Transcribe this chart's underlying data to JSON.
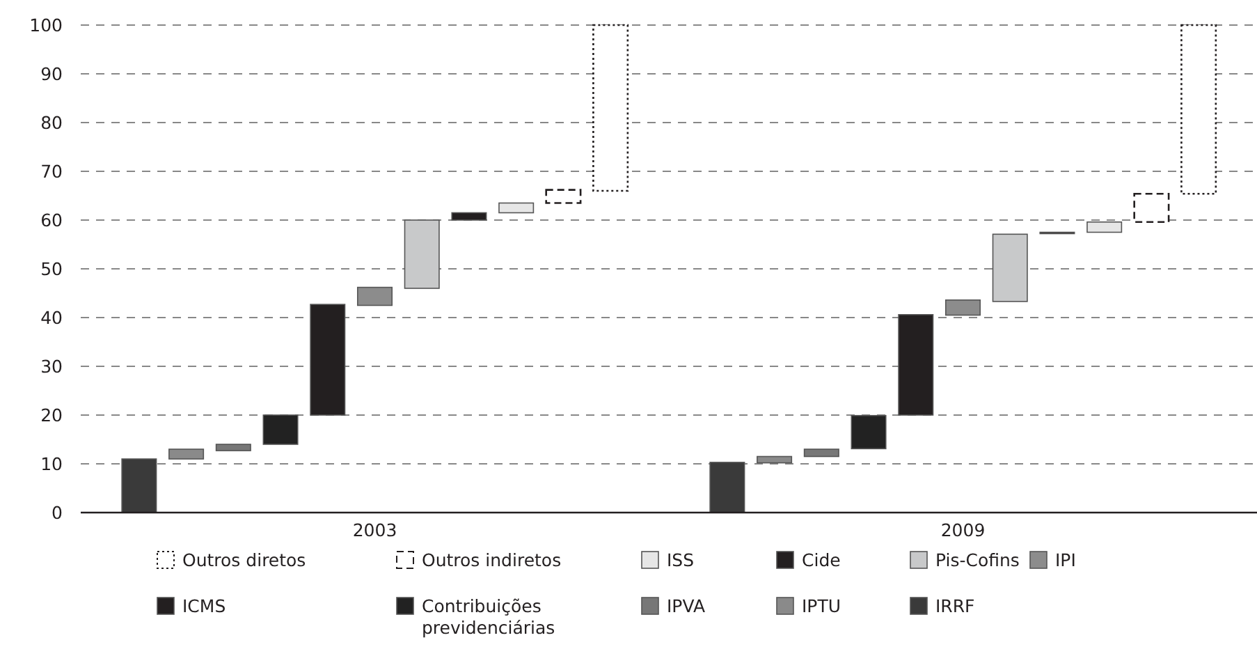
{
  "chart_data": {
    "type": "bar",
    "categories": [
      "2003",
      "2009"
    ],
    "ylim": [
      0,
      100
    ],
    "yticks": [
      0,
      10,
      20,
      30,
      40,
      50,
      60,
      70,
      80,
      90,
      100
    ],
    "grid": "y",
    "legend": "bottom",
    "series": [
      {
        "name": "IRRF",
        "color": "#3a3a3a",
        "base": [
          0,
          0
        ],
        "values": [
          11,
          10.3
        ]
      },
      {
        "name": "IPTU",
        "color": "#8a8a8a",
        "base": [
          11,
          10.2
        ],
        "values": [
          2,
          1.3
        ]
      },
      {
        "name": "IPVA",
        "color": "#777777",
        "base": [
          12.7,
          11.5
        ],
        "values": [
          1.3,
          1.5
        ]
      },
      {
        "name": "Contribuições previdenciárias",
        "color": "#222222",
        "base": [
          14,
          13.1
        ],
        "values": [
          6,
          6.8
        ]
      },
      {
        "name": "ICMS",
        "color": "#231f20",
        "base": [
          20,
          20
        ],
        "values": [
          22.7,
          20.6
        ]
      },
      {
        "name": "IPI",
        "color": "#8c8c8c",
        "base": [
          42.5,
          40.5
        ],
        "values": [
          3.7,
          3.1
        ]
      },
      {
        "name": "Pis-Cofins",
        "color": "#c8c9ca",
        "base": [
          46,
          43.3
        ],
        "values": [
          14,
          13.8
        ]
      },
      {
        "name": "Cide",
        "color": "#231f20",
        "base": [
          60,
          57.3
        ],
        "values": [
          1.5,
          0.2
        ]
      },
      {
        "name": "ISS",
        "color": "#e6e6e6",
        "base": [
          61.5,
          57.5
        ],
        "values": [
          2,
          2.1
        ]
      },
      {
        "name": "Outros indiretos",
        "color": "#ffffff",
        "line_style": "dashed",
        "base": [
          63.5,
          59.6
        ],
        "values": [
          2.7,
          5.8
        ]
      },
      {
        "name": "Outros diretos",
        "color": "#ffffff",
        "line_style": "dotted",
        "base": [
          66,
          65.4
        ],
        "values": [
          34,
          34.6
        ]
      }
    ]
  }
}
